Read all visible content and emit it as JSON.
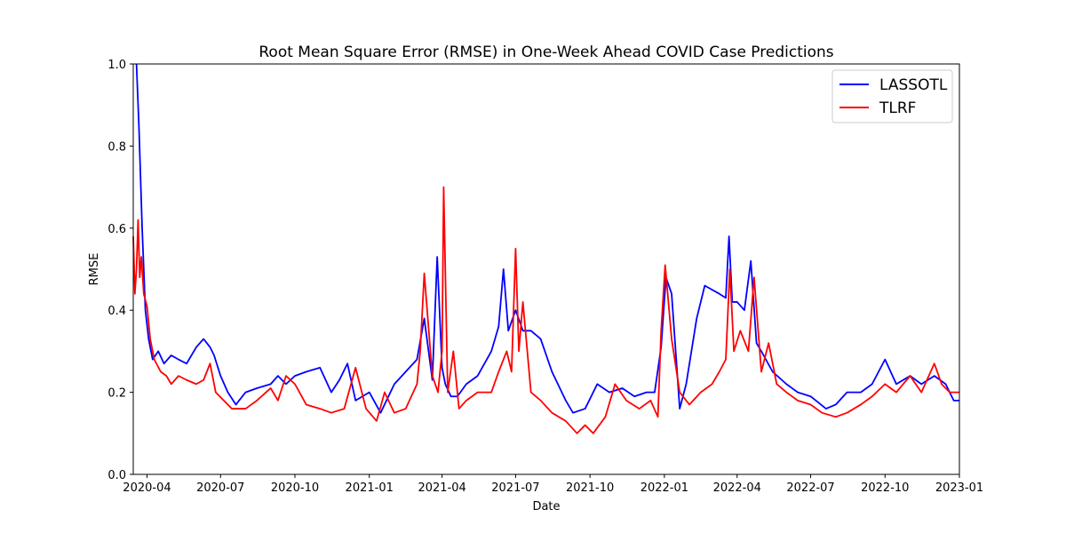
{
  "chart_data": {
    "type": "line",
    "title": "Root Mean Square Error (RMSE) in One-Week Ahead COVID Case Predictions",
    "xlabel": "Date",
    "ylabel": "RMSE",
    "xlim": [
      "2020-03-15",
      "2023-01-01"
    ],
    "ylim": [
      0,
      1.0
    ],
    "x_ticks": [
      "2020-04",
      "2020-07",
      "2020-10",
      "2021-01",
      "2021-04",
      "2021-07",
      "2021-10",
      "2022-01",
      "2022-04",
      "2022-07",
      "2022-10",
      "2023-01"
    ],
    "y_ticks": [
      "0.0",
      "0.2",
      "0.4",
      "0.6",
      "0.8",
      "1.0"
    ],
    "legend_position": "top-right",
    "grid": false,
    "series": [
      {
        "name": "LASSOTL",
        "color": "#0000ff",
        "x": [
          "2020-03-19",
          "2020-03-22",
          "2020-03-26",
          "2020-03-30",
          "2020-04-03",
          "2020-04-08",
          "2020-04-15",
          "2020-04-22",
          "2020-05-01",
          "2020-05-10",
          "2020-05-20",
          "2020-06-01",
          "2020-06-10",
          "2020-06-18",
          "2020-06-23",
          "2020-07-01",
          "2020-07-10",
          "2020-07-20",
          "2020-08-01",
          "2020-08-15",
          "2020-09-01",
          "2020-09-10",
          "2020-09-20",
          "2020-10-01",
          "2020-10-15",
          "2020-11-01",
          "2020-11-15",
          "2020-11-25",
          "2020-12-05",
          "2020-12-15",
          "2021-01-01",
          "2021-01-15",
          "2021-02-01",
          "2021-02-15",
          "2021-03-01",
          "2021-03-10",
          "2021-03-20",
          "2021-03-26",
          "2021-04-01",
          "2021-04-05",
          "2021-04-12",
          "2021-04-20",
          "2021-05-01",
          "2021-05-15",
          "2021-06-01",
          "2021-06-10",
          "2021-06-16",
          "2021-06-22",
          "2021-07-01",
          "2021-07-10",
          "2021-07-20",
          "2021-08-01",
          "2021-08-15",
          "2021-09-01",
          "2021-09-10",
          "2021-09-25",
          "2021-10-10",
          "2021-10-25",
          "2021-11-10",
          "2021-11-25",
          "2021-12-10",
          "2021-12-20",
          "2021-12-28",
          "2022-01-03",
          "2022-01-10",
          "2022-01-20",
          "2022-01-28",
          "2022-02-10",
          "2022-02-20",
          "2022-03-01",
          "2022-03-10",
          "2022-03-18",
          "2022-03-22",
          "2022-03-26",
          "2022-04-01",
          "2022-04-10",
          "2022-04-18",
          "2022-04-25",
          "2022-05-01",
          "2022-05-15",
          "2022-06-01",
          "2022-06-15",
          "2022-07-01",
          "2022-07-20",
          "2022-08-01",
          "2022-08-15",
          "2022-09-01",
          "2022-09-15",
          "2022-10-01",
          "2022-10-15",
          "2022-11-01",
          "2022-11-15",
          "2022-12-01",
          "2022-12-15",
          "2022-12-25",
          "2023-01-01"
        ],
        "y": [
          1.0,
          0.85,
          0.6,
          0.4,
          0.33,
          0.28,
          0.3,
          0.27,
          0.29,
          0.28,
          0.27,
          0.31,
          0.33,
          0.31,
          0.29,
          0.24,
          0.2,
          0.17,
          0.2,
          0.21,
          0.22,
          0.24,
          0.22,
          0.24,
          0.25,
          0.26,
          0.2,
          0.23,
          0.27,
          0.18,
          0.2,
          0.15,
          0.22,
          0.25,
          0.28,
          0.38,
          0.23,
          0.53,
          0.26,
          0.22,
          0.19,
          0.19,
          0.22,
          0.24,
          0.3,
          0.36,
          0.5,
          0.35,
          0.4,
          0.35,
          0.35,
          0.33,
          0.25,
          0.18,
          0.15,
          0.16,
          0.22,
          0.2,
          0.21,
          0.19,
          0.2,
          0.2,
          0.31,
          0.48,
          0.44,
          0.16,
          0.22,
          0.38,
          0.46,
          0.45,
          0.44,
          0.43,
          0.58,
          0.42,
          0.42,
          0.4,
          0.52,
          0.32,
          0.3,
          0.25,
          0.22,
          0.2,
          0.19,
          0.16,
          0.17,
          0.2,
          0.2,
          0.22,
          0.28,
          0.22,
          0.24,
          0.22,
          0.24,
          0.22,
          0.18,
          0.18
        ]
      },
      {
        "name": "TLRF",
        "color": "#ff0000",
        "x": [
          "2020-03-15",
          "2020-03-17",
          "2020-03-19",
          "2020-03-21",
          "2020-03-23",
          "2020-03-25",
          "2020-03-28",
          "2020-04-01",
          "2020-04-05",
          "2020-04-10",
          "2020-04-18",
          "2020-04-25",
          "2020-05-01",
          "2020-05-10",
          "2020-05-20",
          "2020-06-01",
          "2020-06-10",
          "2020-06-18",
          "2020-06-25",
          "2020-07-05",
          "2020-07-15",
          "2020-08-01",
          "2020-08-15",
          "2020-09-01",
          "2020-09-10",
          "2020-09-20",
          "2020-10-01",
          "2020-10-15",
          "2020-11-01",
          "2020-11-15",
          "2020-12-01",
          "2020-12-15",
          "2020-12-28",
          "2021-01-10",
          "2021-01-20",
          "2021-02-01",
          "2021-02-15",
          "2021-03-01",
          "2021-03-05",
          "2021-03-10",
          "2021-03-20",
          "2021-03-27",
          "2021-04-01",
          "2021-04-03",
          "2021-04-08",
          "2021-04-15",
          "2021-04-22",
          "2021-05-01",
          "2021-05-15",
          "2021-06-01",
          "2021-06-10",
          "2021-06-20",
          "2021-06-26",
          "2021-07-01",
          "2021-07-05",
          "2021-07-10",
          "2021-07-20",
          "2021-08-01",
          "2021-08-15",
          "2021-09-01",
          "2021-09-15",
          "2021-09-25",
          "2021-10-05",
          "2021-10-20",
          "2021-11-01",
          "2021-11-15",
          "2021-12-01",
          "2021-12-15",
          "2021-12-24",
          "2021-12-28",
          "2022-01-02",
          "2022-01-10",
          "2022-01-20",
          "2022-02-01",
          "2022-02-15",
          "2022-03-01",
          "2022-03-10",
          "2022-03-18",
          "2022-03-23",
          "2022-03-28",
          "2022-04-05",
          "2022-04-15",
          "2022-04-22",
          "2022-05-01",
          "2022-05-10",
          "2022-05-20",
          "2022-06-01",
          "2022-06-15",
          "2022-07-01",
          "2022-07-15",
          "2022-08-01",
          "2022-08-15",
          "2022-09-01",
          "2022-09-15",
          "2022-10-01",
          "2022-10-15",
          "2022-11-01",
          "2022-11-15",
          "2022-12-01",
          "2022-12-10",
          "2022-12-20",
          "2023-01-01"
        ],
        "y": [
          0.58,
          0.44,
          0.5,
          0.62,
          0.48,
          0.53,
          0.44,
          0.41,
          0.33,
          0.28,
          0.25,
          0.24,
          0.22,
          0.24,
          0.23,
          0.22,
          0.23,
          0.27,
          0.2,
          0.18,
          0.16,
          0.16,
          0.18,
          0.21,
          0.18,
          0.24,
          0.22,
          0.17,
          0.16,
          0.15,
          0.16,
          0.26,
          0.16,
          0.13,
          0.2,
          0.15,
          0.16,
          0.22,
          0.3,
          0.49,
          0.24,
          0.2,
          0.3,
          0.7,
          0.2,
          0.3,
          0.16,
          0.18,
          0.2,
          0.2,
          0.25,
          0.3,
          0.25,
          0.55,
          0.3,
          0.42,
          0.2,
          0.18,
          0.15,
          0.13,
          0.1,
          0.12,
          0.1,
          0.14,
          0.22,
          0.18,
          0.16,
          0.18,
          0.14,
          0.35,
          0.51,
          0.33,
          0.2,
          0.17,
          0.2,
          0.22,
          0.25,
          0.28,
          0.5,
          0.3,
          0.35,
          0.3,
          0.48,
          0.25,
          0.32,
          0.22,
          0.2,
          0.18,
          0.17,
          0.15,
          0.14,
          0.15,
          0.17,
          0.19,
          0.22,
          0.2,
          0.24,
          0.2,
          0.27,
          0.22,
          0.2,
          0.2
        ]
      }
    ]
  }
}
